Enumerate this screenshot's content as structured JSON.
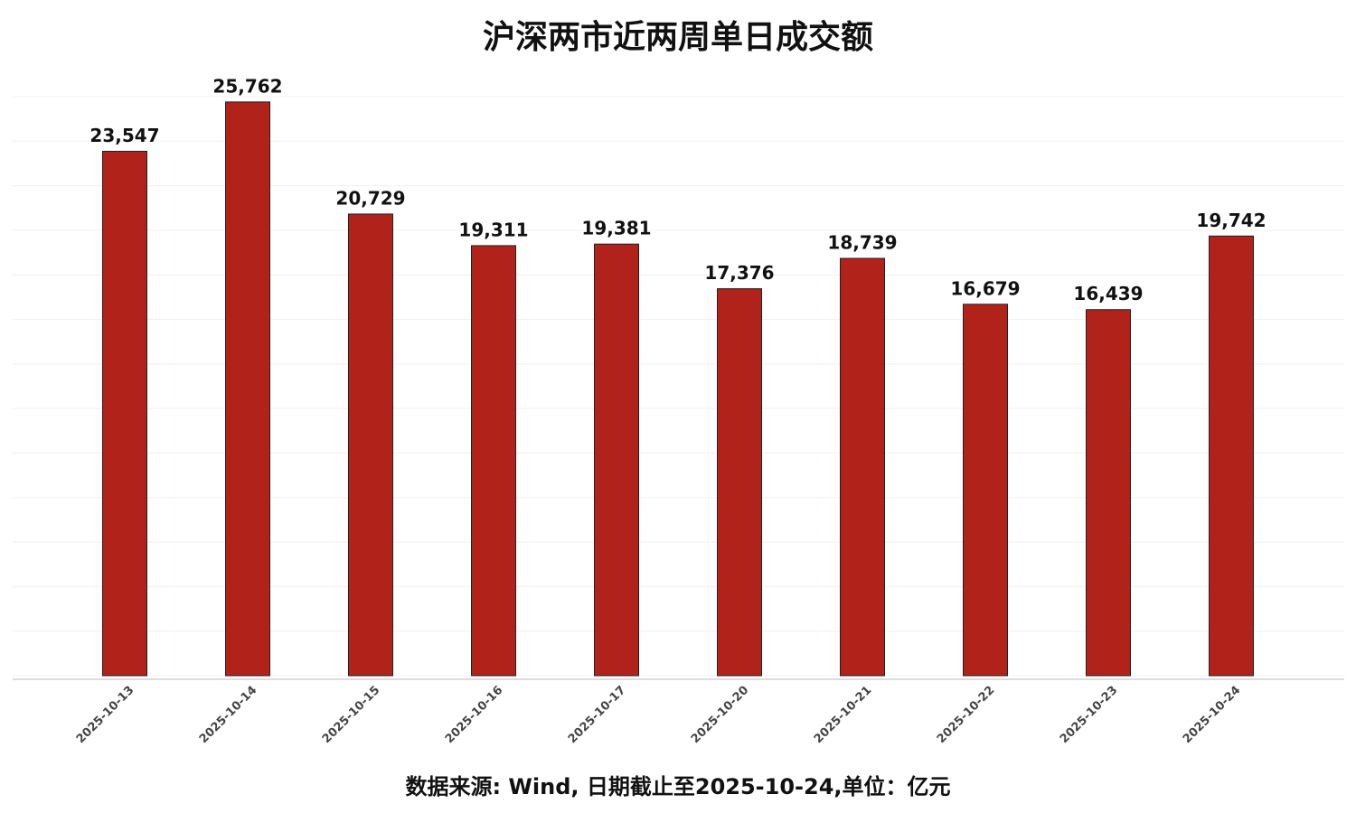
{
  "chart_data": {
    "type": "bar",
    "title": "沪深两市近两周单日成交额",
    "source": "数据来源: Wind, 日期截止至2025-10-24,单位：亿元",
    "categories": [
      "2025-10-13",
      "2025-10-14",
      "2025-10-15",
      "2025-10-16",
      "2025-10-17",
      "2025-10-20",
      "2025-10-21",
      "2025-10-22",
      "2025-10-23",
      "2025-10-24"
    ],
    "values": [
      23547,
      25762,
      20729,
      19311,
      19381,
      17376,
      18739,
      16679,
      16439,
      19742
    ],
    "value_labels": [
      "23,547",
      "25,762",
      "20,729",
      "19,311",
      "19,381",
      "17,376",
      "18,739",
      "16,679",
      "16,439",
      "19,742"
    ],
    "color": "#b0221a",
    "ylim": [
      0,
      26000
    ],
    "yticks": [
      0,
      2000,
      4000,
      6000,
      8000,
      10000,
      12000,
      14000,
      16000,
      18000,
      20000,
      22000,
      24000,
      26000
    ],
    "grid": true
  }
}
